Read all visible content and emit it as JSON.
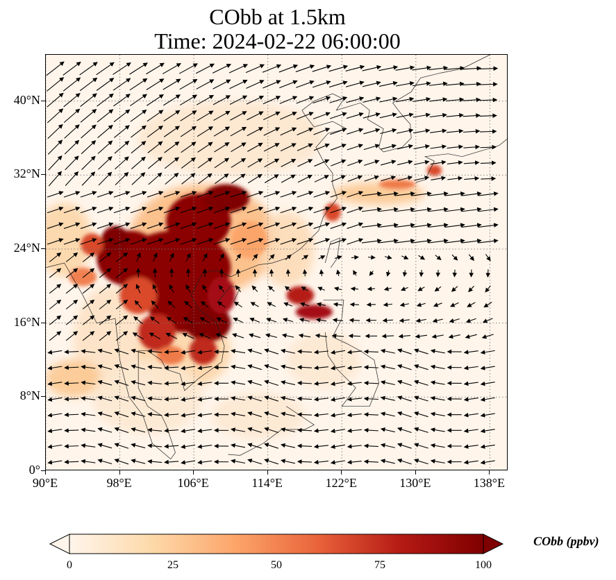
{
  "title": {
    "line1": "CObb at 1.5km",
    "line2": "Time: 2024-02-22 06:00:00"
  },
  "map": {
    "extent": {
      "lon": [
        90,
        140
      ],
      "lat": [
        0,
        45
      ]
    },
    "lat_ticks": [
      "0°",
      "8°N",
      "16°N",
      "24°N",
      "32°N",
      "40°N"
    ],
    "lat_values": [
      0,
      8,
      16,
      24,
      32,
      40
    ],
    "lon_ticks": [
      "90°E",
      "98°E",
      "106°E",
      "114°E",
      "122°E",
      "130°E",
      "138°E"
    ],
    "lon_values": [
      90,
      98,
      106,
      114,
      122,
      130,
      138
    ],
    "gridlines": true,
    "field_variable": "CObb",
    "overlay": "wind vectors",
    "background_color": "#fff5eb"
  },
  "colorbar": {
    "label": "CObb (ppbv)",
    "ticks": [
      "0",
      "25",
      "50",
      "75",
      "100"
    ],
    "tick_values": [
      0,
      25,
      50,
      75,
      100
    ],
    "range": [
      0,
      100
    ],
    "colormap": "OrRd-like",
    "colors": [
      "#fff5eb",
      "#fdd9a9",
      "#fca56a",
      "#e9633a",
      "#b51a14",
      "#7f0000"
    ],
    "extend": "both"
  }
}
